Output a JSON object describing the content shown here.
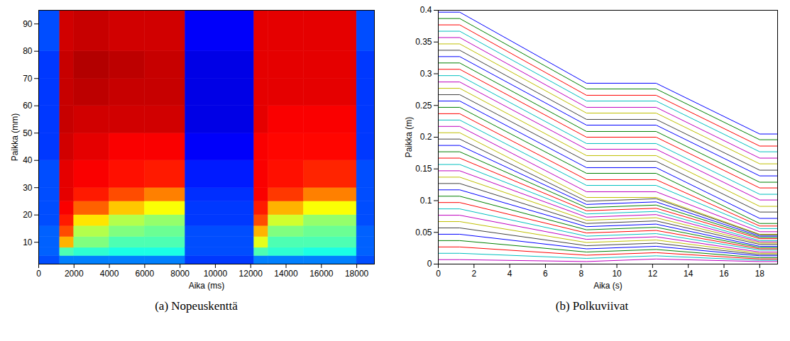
{
  "chart_data": [
    {
      "type": "heatmap",
      "title": "(a) Nopeuskenttä",
      "xlabel": "Aika (ms)",
      "ylabel": "Paikka (mm)",
      "xlim": [
        0,
        19000
      ],
      "ylim": [
        2,
        95
      ],
      "xticks": [
        0,
        2000,
        4000,
        6000,
        8000,
        10000,
        12000,
        14000,
        16000,
        18000
      ],
      "yticks": [
        10,
        20,
        30,
        40,
        50,
        60,
        70,
        80,
        90
      ],
      "color": "jet",
      "color_range": [
        0,
        1
      ],
      "x_edges": [
        0,
        1200,
        2000,
        4000,
        6000,
        8300,
        12200,
        13000,
        15000,
        18000,
        19000
      ],
      "y_edges": [
        2,
        5,
        8,
        12,
        16,
        20,
        25,
        30,
        40,
        50,
        60,
        70,
        80,
        95
      ],
      "cells": [
        [
          0.2,
          0.25,
          0.25,
          0.25,
          0.25,
          0.18,
          0.25,
          0.25,
          0.25,
          0.2
        ],
        [
          0.22,
          0.45,
          0.42,
          0.4,
          0.4,
          0.2,
          0.45,
          0.42,
          0.4,
          0.22
        ],
        [
          0.22,
          0.7,
          0.5,
          0.45,
          0.45,
          0.2,
          0.6,
          0.45,
          0.45,
          0.22
        ],
        [
          0.22,
          0.8,
          0.55,
          0.5,
          0.48,
          0.2,
          0.7,
          0.5,
          0.48,
          0.22
        ],
        [
          0.2,
          0.85,
          0.65,
          0.55,
          0.52,
          0.18,
          0.8,
          0.58,
          0.52,
          0.2
        ],
        [
          0.2,
          0.88,
          0.78,
          0.68,
          0.62,
          0.18,
          0.85,
          0.7,
          0.62,
          0.2
        ],
        [
          0.2,
          0.9,
          0.85,
          0.8,
          0.75,
          0.17,
          0.88,
          0.82,
          0.75,
          0.2
        ],
        [
          0.2,
          0.9,
          0.88,
          0.86,
          0.85,
          0.15,
          0.88,
          0.86,
          0.84,
          0.2
        ],
        [
          0.18,
          0.92,
          0.9,
          0.88,
          0.88,
          0.12,
          0.88,
          0.87,
          0.87,
          0.18
        ],
        [
          0.18,
          0.93,
          0.92,
          0.92,
          0.92,
          0.1,
          0.9,
          0.88,
          0.88,
          0.18
        ],
        [
          0.18,
          0.93,
          0.94,
          0.93,
          0.93,
          0.1,
          0.9,
          0.9,
          0.9,
          0.18
        ],
        [
          0.18,
          0.93,
          0.95,
          0.94,
          0.93,
          0.1,
          0.9,
          0.9,
          0.9,
          0.18
        ],
        [
          0.2,
          0.92,
          0.93,
          0.92,
          0.92,
          0.12,
          0.9,
          0.9,
          0.9,
          0.2
        ]
      ]
    },
    {
      "type": "line",
      "title": "(b) Polkuviivat",
      "xlabel": "Aika (s)",
      "ylabel": "Paikka (m)",
      "xlim": [
        0,
        19
      ],
      "ylim": [
        0,
        0.4
      ],
      "xticks": [
        0,
        2,
        4,
        6,
        8,
        10,
        12,
        14,
        16,
        18
      ],
      "yticks": [
        0,
        0.05,
        0.1,
        0.15,
        0.2,
        0.25,
        0.3,
        0.35,
        0.4
      ],
      "x": [
        0,
        1.2,
        8.3,
        12.2,
        18,
        19
      ],
      "series": [
        {
          "color": "#0000ff",
          "values": [
            0.397,
            0.397,
            0.285,
            0.285,
            0.205,
            0.205
          ]
        },
        {
          "color": "#008000",
          "values": [
            0.387,
            0.387,
            0.276,
            0.276,
            0.196,
            0.196
          ]
        },
        {
          "color": "#ff0000",
          "values": [
            0.377,
            0.377,
            0.266,
            0.266,
            0.186,
            0.186
          ]
        },
        {
          "color": "#00bfbf",
          "values": [
            0.367,
            0.367,
            0.257,
            0.257,
            0.177,
            0.177
          ]
        },
        {
          "color": "#bf00bf",
          "values": [
            0.357,
            0.357,
            0.247,
            0.247,
            0.167,
            0.167
          ]
        },
        {
          "color": "#bfbf00",
          "values": [
            0.347,
            0.347,
            0.238,
            0.238,
            0.158,
            0.158
          ]
        },
        {
          "color": "#404040",
          "values": [
            0.337,
            0.337,
            0.228,
            0.228,
            0.148,
            0.148
          ]
        },
        {
          "color": "#0000ff",
          "values": [
            0.327,
            0.327,
            0.219,
            0.219,
            0.139,
            0.139
          ]
        },
        {
          "color": "#008000",
          "values": [
            0.317,
            0.317,
            0.209,
            0.209,
            0.129,
            0.129
          ]
        },
        {
          "color": "#ff0000",
          "values": [
            0.307,
            0.307,
            0.2,
            0.2,
            0.12,
            0.12
          ]
        },
        {
          "color": "#00bfbf",
          "values": [
            0.297,
            0.297,
            0.19,
            0.19,
            0.11,
            0.11
          ]
        },
        {
          "color": "#bf00bf",
          "values": [
            0.287,
            0.287,
            0.181,
            0.181,
            0.101,
            0.101
          ]
        },
        {
          "color": "#bfbf00",
          "values": [
            0.277,
            0.277,
            0.171,
            0.171,
            0.091,
            0.091
          ]
        },
        {
          "color": "#404040",
          "values": [
            0.267,
            0.267,
            0.162,
            0.162,
            0.082,
            0.082
          ]
        },
        {
          "color": "#0000ff",
          "values": [
            0.257,
            0.257,
            0.152,
            0.152,
            0.072,
            0.072
          ]
        },
        {
          "color": "#008000",
          "values": [
            0.247,
            0.247,
            0.143,
            0.143,
            0.064,
            0.064
          ]
        },
        {
          "color": "#ff0000",
          "values": [
            0.237,
            0.237,
            0.133,
            0.133,
            0.06,
            0.06
          ]
        },
        {
          "color": "#00bfbf",
          "values": [
            0.227,
            0.227,
            0.124,
            0.124,
            0.056,
            0.056
          ]
        },
        {
          "color": "#bf00bf",
          "values": [
            0.217,
            0.217,
            0.114,
            0.114,
            0.051,
            0.051
          ]
        },
        {
          "color": "#bfbf00",
          "values": [
            0.207,
            0.207,
            0.105,
            0.105,
            0.047,
            0.047
          ]
        },
        {
          "color": "#404040",
          "values": [
            0.197,
            0.197,
            0.099,
            0.103,
            0.046,
            0.046
          ]
        },
        {
          "color": "#0000ff",
          "values": [
            0.187,
            0.187,
            0.094,
            0.098,
            0.044,
            0.044
          ]
        },
        {
          "color": "#008000",
          "values": [
            0.177,
            0.177,
            0.089,
            0.093,
            0.042,
            0.042
          ]
        },
        {
          "color": "#ff0000",
          "values": [
            0.167,
            0.167,
            0.084,
            0.088,
            0.04,
            0.04
          ]
        },
        {
          "color": "#00bfbf",
          "values": [
            0.157,
            0.157,
            0.079,
            0.083,
            0.037,
            0.037
          ]
        },
        {
          "color": "#bf00bf",
          "values": [
            0.147,
            0.147,
            0.074,
            0.078,
            0.035,
            0.035
          ]
        },
        {
          "color": "#bfbf00",
          "values": [
            0.137,
            0.137,
            0.069,
            0.073,
            0.033,
            0.033
          ]
        },
        {
          "color": "#404040",
          "values": [
            0.127,
            0.127,
            0.064,
            0.068,
            0.031,
            0.031
          ]
        },
        {
          "color": "#0000ff",
          "values": [
            0.117,
            0.117,
            0.059,
            0.063,
            0.028,
            0.028
          ]
        },
        {
          "color": "#008000",
          "values": [
            0.107,
            0.107,
            0.054,
            0.058,
            0.026,
            0.026
          ]
        },
        {
          "color": "#ff0000",
          "values": [
            0.097,
            0.097,
            0.049,
            0.053,
            0.024,
            0.024
          ]
        },
        {
          "color": "#00bfbf",
          "values": [
            0.087,
            0.087,
            0.044,
            0.048,
            0.022,
            0.022
          ]
        },
        {
          "color": "#bf00bf",
          "values": [
            0.077,
            0.077,
            0.039,
            0.043,
            0.019,
            0.019
          ]
        },
        {
          "color": "#bfbf00",
          "values": [
            0.067,
            0.067,
            0.034,
            0.038,
            0.017,
            0.017
          ]
        },
        {
          "color": "#404040",
          "values": [
            0.057,
            0.057,
            0.029,
            0.033,
            0.015,
            0.015
          ]
        },
        {
          "color": "#0000ff",
          "values": [
            0.047,
            0.047,
            0.024,
            0.028,
            0.013,
            0.013
          ]
        },
        {
          "color": "#008000",
          "values": [
            0.037,
            0.037,
            0.019,
            0.023,
            0.01,
            0.01
          ]
        },
        {
          "color": "#ff0000",
          "values": [
            0.027,
            0.027,
            0.014,
            0.018,
            0.008,
            0.008
          ]
        },
        {
          "color": "#00bfbf",
          "values": [
            0.017,
            0.017,
            0.009,
            0.013,
            0.006,
            0.006
          ]
        },
        {
          "color": "#bf00bf",
          "values": [
            0.007,
            0.007,
            0.004,
            0.008,
            0.004,
            0.004
          ]
        }
      ]
    }
  ]
}
